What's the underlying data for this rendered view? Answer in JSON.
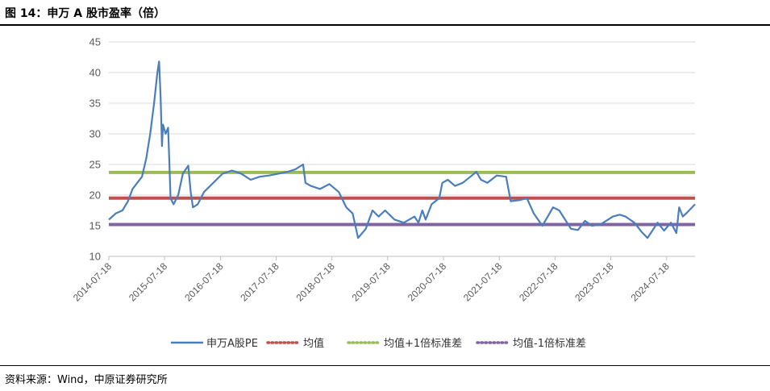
{
  "figure": {
    "title": "图 14：申万 A 股市盈率（倍）",
    "source": "资料来源：Wind，中原证券研究所"
  },
  "chart_data": {
    "type": "line",
    "title": "",
    "xlabel": "",
    "ylabel": "",
    "ylim": [
      10,
      45
    ],
    "y_ticks": [
      10,
      15,
      20,
      25,
      30,
      35,
      40,
      45
    ],
    "x_range": [
      "2014-07-18",
      "2025-01-20"
    ],
    "x_tick_labels": [
      "2014-07-18",
      "2015-07-18",
      "2016-07-18",
      "2017-07-18",
      "2018-07-18",
      "2019-07-18",
      "2020-07-18",
      "2021-07-18",
      "2022-07-18",
      "2023-07-18",
      "2024-07-18"
    ],
    "grid": "horizontal",
    "legend_position": "bottom",
    "series": [
      {
        "name": "申万A股PE",
        "style": "solid",
        "color": "#4a7ebb",
        "x": [
          "2014-07-18",
          "2014-09-01",
          "2014-10-15",
          "2014-11-20",
          "2014-12-20",
          "2015-01-20",
          "2015-02-20",
          "2015-03-20",
          "2015-04-15",
          "2015-05-10",
          "2015-06-01",
          "2015-06-12",
          "2015-06-22",
          "2015-07-01",
          "2015-07-08",
          "2015-07-25",
          "2015-08-10",
          "2015-08-20",
          "2015-08-26",
          "2015-09-15",
          "2015-10-15",
          "2015-11-15",
          "2015-12-20",
          "2016-01-05",
          "2016-01-20",
          "2016-02-20",
          "2016-04-01",
          "2016-06-01",
          "2016-08-01",
          "2016-10-01",
          "2016-12-01",
          "2017-02-01",
          "2017-04-01",
          "2017-06-01",
          "2017-08-01",
          "2017-10-01",
          "2017-11-20",
          "2018-01-10",
          "2018-01-26",
          "2018-03-01",
          "2018-05-01",
          "2018-07-01",
          "2018-09-01",
          "2018-10-20",
          "2018-12-01",
          "2019-01-05",
          "2019-02-25",
          "2019-04-10",
          "2019-05-20",
          "2019-07-01",
          "2019-09-01",
          "2019-11-01",
          "2020-01-10",
          "2020-02-05",
          "2020-03-01",
          "2020-03-23",
          "2020-05-01",
          "2020-06-20",
          "2020-07-10",
          "2020-08-15",
          "2020-10-01",
          "2020-11-20",
          "2021-01-10",
          "2021-02-18",
          "2021-03-20",
          "2021-05-01",
          "2021-07-01",
          "2021-09-01",
          "2021-10-01",
          "2021-12-01",
          "2022-01-15",
          "2022-03-01",
          "2022-04-26",
          "2022-06-01",
          "2022-07-05",
          "2022-08-15",
          "2022-10-31",
          "2022-12-15",
          "2023-01-30",
          "2023-03-15",
          "2023-05-10",
          "2023-07-01",
          "2023-08-01",
          "2023-09-15",
          "2023-10-23",
          "2023-12-20",
          "2024-02-05",
          "2024-03-15",
          "2024-05-20",
          "2024-07-01",
          "2024-08-15",
          "2024-09-20",
          "2024-10-08",
          "2024-11-01",
          "2024-12-01",
          "2025-01-20"
        ],
        "values": [
          16.0,
          17.0,
          17.5,
          19.0,
          21.0,
          22.0,
          23.0,
          26.0,
          30.0,
          35.0,
          40.0,
          41.8,
          36.0,
          28.0,
          31.5,
          30.0,
          31.0,
          24.0,
          19.5,
          18.5,
          20.0,
          23.5,
          24.8,
          20.5,
          18.0,
          18.5,
          20.5,
          22.0,
          23.5,
          24.0,
          23.5,
          22.5,
          23.0,
          23.2,
          23.5,
          23.8,
          24.2,
          25.0,
          22.0,
          21.5,
          21.0,
          21.8,
          20.5,
          18.0,
          17.0,
          13.0,
          14.5,
          17.5,
          16.5,
          17.5,
          16.0,
          15.5,
          16.5,
          15.5,
          17.5,
          16.0,
          18.5,
          19.5,
          22.0,
          22.5,
          21.5,
          22.0,
          23.0,
          23.8,
          22.5,
          22.0,
          23.2,
          23.0,
          19.0,
          19.2,
          19.5,
          17.0,
          15.0,
          16.5,
          18.0,
          17.5,
          14.5,
          14.3,
          15.8,
          15.0,
          15.2,
          16.0,
          16.5,
          16.8,
          16.5,
          15.5,
          14.0,
          13.0,
          15.5,
          14.2,
          15.5,
          13.8,
          18.0,
          16.5,
          17.2,
          18.5
        ]
      },
      {
        "name": "均值",
        "style": "dotted",
        "color": "#c0504d",
        "constant": 19.5
      },
      {
        "name": "均值+1倍标准差",
        "style": "dotted",
        "color": "#9bbb59",
        "constant": 23.7
      },
      {
        "name": "均值-1倍标准差",
        "style": "dotted",
        "color": "#8064a2",
        "constant": 15.2
      }
    ]
  }
}
